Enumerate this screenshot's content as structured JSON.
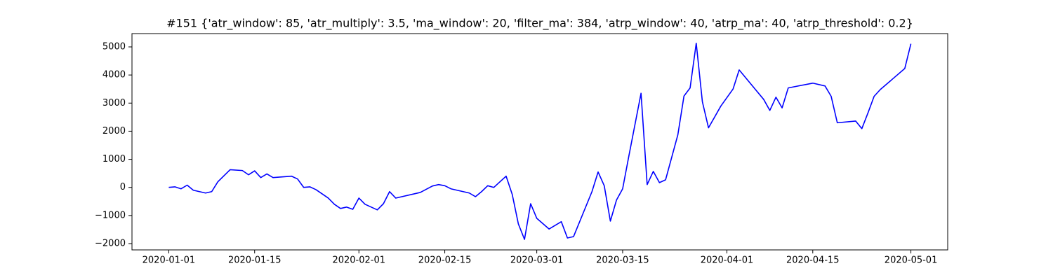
{
  "chart_data": {
    "type": "line",
    "title": "#151 {'atr_window': 85, 'atr_multiply': 3.5, 'ma_window': 20, 'filter_ma': 384, 'atrp_window': 40, 'atrp_ma': 40, 'atrp_threshold': 0.2}",
    "color": "#0000ff",
    "x": [
      "2020-01-01",
      "2020-01-02",
      "2020-01-03",
      "2020-01-04",
      "2020-01-05",
      "2020-01-07",
      "2020-01-08",
      "2020-01-09",
      "2020-01-11",
      "2020-01-13",
      "2020-01-14",
      "2020-01-15",
      "2020-01-16",
      "2020-01-17",
      "2020-01-18",
      "2020-01-21",
      "2020-01-22",
      "2020-01-23",
      "2020-01-24",
      "2020-01-25",
      "2020-01-27",
      "2020-01-28",
      "2020-01-29",
      "2020-01-30",
      "2020-01-31",
      "2020-02-01",
      "2020-02-02",
      "2020-02-04",
      "2020-02-05",
      "2020-02-06",
      "2020-02-07",
      "2020-02-11",
      "2020-02-13",
      "2020-02-14",
      "2020-02-15",
      "2020-02-16",
      "2020-02-19",
      "2020-02-20",
      "2020-02-21",
      "2020-02-22",
      "2020-02-23",
      "2020-02-25",
      "2020-02-26",
      "2020-02-27",
      "2020-02-28",
      "2020-02-29",
      "2020-03-01",
      "2020-03-03",
      "2020-03-05",
      "2020-03-06",
      "2020-03-07",
      "2020-03-10",
      "2020-03-11",
      "2020-03-12",
      "2020-03-13",
      "2020-03-14",
      "2020-03-15",
      "2020-03-16",
      "2020-03-18",
      "2020-03-19",
      "2020-03-20",
      "2020-03-21",
      "2020-03-22",
      "2020-03-24",
      "2020-03-25",
      "2020-03-26",
      "2020-03-27",
      "2020-03-28",
      "2020-03-29",
      "2020-03-31",
      "2020-04-02",
      "2020-04-03",
      "2020-04-07",
      "2020-04-08",
      "2020-04-09",
      "2020-04-10",
      "2020-04-11",
      "2020-04-15",
      "2020-04-17",
      "2020-04-18",
      "2020-04-19",
      "2020-04-22",
      "2020-04-23",
      "2020-04-24",
      "2020-04-25",
      "2020-04-26",
      "2020-04-30",
      "2020-05-01"
    ],
    "values": [
      0,
      20,
      -50,
      80,
      -100,
      -200,
      -150,
      200,
      630,
      600,
      450,
      590,
      350,
      480,
      350,
      400,
      300,
      0,
      20,
      -80,
      -380,
      -600,
      -750,
      -700,
      -780,
      -380,
      -600,
      -800,
      -580,
      -150,
      -380,
      -180,
      50,
      100,
      60,
      -50,
      -200,
      -330,
      -150,
      60,
      0,
      400,
      -250,
      -1300,
      -1850,
      -580,
      -1100,
      -1480,
      -1220,
      -1800,
      -1750,
      -150,
      550,
      60,
      -1200,
      -450,
      -50,
      1100,
      3350,
      100,
      570,
      170,
      270,
      1870,
      3250,
      3540,
      5130,
      3050,
      2120,
      2890,
      3500,
      4180,
      3130,
      2740,
      3210,
      2830,
      3540,
      3710,
      3610,
      3240,
      2300,
      2360,
      2090,
      2650,
      3240,
      3480,
      4230,
      5110
    ],
    "xlim": [
      "2019-12-26",
      "2020-05-07"
    ],
    "xticks": [
      "2020-01-01",
      "2020-01-15",
      "2020-02-01",
      "2020-02-15",
      "2020-03-01",
      "2020-03-15",
      "2020-04-01",
      "2020-04-15",
      "2020-05-01"
    ],
    "ylim": [
      -2224,
      5473
    ],
    "yticks": [
      {
        "value": -2000,
        "label": "−2000"
      },
      {
        "value": -1000,
        "label": "−1000"
      },
      0,
      1000,
      2000,
      3000,
      4000,
      5000
    ]
  }
}
